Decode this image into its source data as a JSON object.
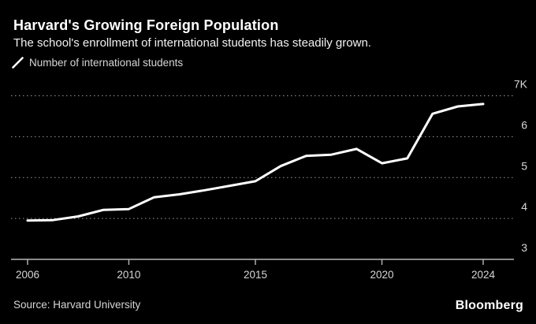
{
  "header": {
    "title": "Harvard's Growing Foreign Population",
    "subtitle": "The school's enrollment of international students has steadily grown."
  },
  "legend": {
    "marker": "slash-line-icon",
    "label": "Number of international students"
  },
  "chart_data": {
    "type": "line",
    "title": "Harvard's Growing Foreign Population",
    "subtitle": "The school's enrollment of international students has steadily grown.",
    "x": [
      2006,
      2007,
      2008,
      2009,
      2010,
      2011,
      2012,
      2013,
      2014,
      2015,
      2016,
      2017,
      2018,
      2019,
      2020,
      2021,
      2022,
      2023,
      2024
    ],
    "series": [
      {
        "name": "Number of international students",
        "color": "#ffffff",
        "values": [
          3950,
          3960,
          4050,
          4210,
          4230,
          4520,
          4590,
          4690,
          4800,
          4910,
          5280,
          5530,
          5560,
          5700,
          5350,
          5470,
          6560,
          6740,
          6800
        ]
      }
    ],
    "ylim": [
      3000,
      7000
    ],
    "yticks": [
      {
        "value": 7000,
        "label": "7K"
      },
      {
        "value": 6000,
        "label": "6"
      },
      {
        "value": 5000,
        "label": "5"
      },
      {
        "value": 4000,
        "label": "4"
      },
      {
        "value": 3000,
        "label": "3"
      }
    ],
    "xticks": [
      2006,
      2010,
      2015,
      2020,
      2024
    ],
    "grid": "horizontal-dotted",
    "legend_position": "top-left",
    "xlabel": "",
    "ylabel": ""
  },
  "footer": {
    "source": "Source: Harvard University",
    "brand": "Bloomberg"
  },
  "colors": {
    "background": "#000000",
    "line": "#ffffff",
    "grid": "#999999",
    "axis": "#b8b8b8",
    "tick_label": "#d6d6d6"
  }
}
